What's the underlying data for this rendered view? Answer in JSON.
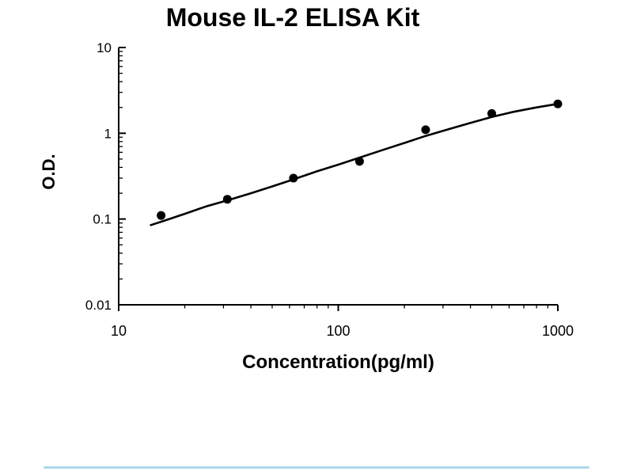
{
  "page": {
    "background": "#ffffff"
  },
  "chart_data": {
    "type": "scatter",
    "title": "Mouse IL-2 ELISA Kit",
    "xlabel": "Concentration(pg/ml)",
    "ylabel": "O.D.",
    "x_scale": "log",
    "y_scale": "log",
    "xlim": [
      10,
      1000
    ],
    "ylim": [
      0.01,
      10
    ],
    "x_ticks": [
      "10",
      "100",
      "1000"
    ],
    "y_ticks": [
      "10",
      "1",
      "0.1",
      "0.01"
    ],
    "grid": false,
    "legend": "none",
    "points": [
      {
        "x": 15.6,
        "y": 0.11
      },
      {
        "x": 31.25,
        "y": 0.17
      },
      {
        "x": 62.5,
        "y": 0.3
      },
      {
        "x": 125,
        "y": 0.47
      },
      {
        "x": 250,
        "y": 1.1
      },
      {
        "x": 500,
        "y": 1.7
      },
      {
        "x": 1000,
        "y": 2.2
      }
    ],
    "curve": [
      [
        14,
        0.085
      ],
      [
        16,
        0.095
      ],
      [
        20,
        0.115
      ],
      [
        25,
        0.14
      ],
      [
        31.25,
        0.165
      ],
      [
        40,
        0.2
      ],
      [
        50,
        0.24
      ],
      [
        62.5,
        0.29
      ],
      [
        80,
        0.36
      ],
      [
        100,
        0.43
      ],
      [
        125,
        0.52
      ],
      [
        160,
        0.64
      ],
      [
        200,
        0.77
      ],
      [
        250,
        0.93
      ],
      [
        320,
        1.12
      ],
      [
        400,
        1.32
      ],
      [
        500,
        1.55
      ],
      [
        630,
        1.78
      ],
      [
        800,
        2.0
      ],
      [
        1000,
        2.2
      ]
    ],
    "colors": {
      "axis": "#000000",
      "curve": "#000000",
      "points": "#000000",
      "text": "#000000"
    }
  },
  "footer": {
    "divider_color": "#aed6e8"
  }
}
